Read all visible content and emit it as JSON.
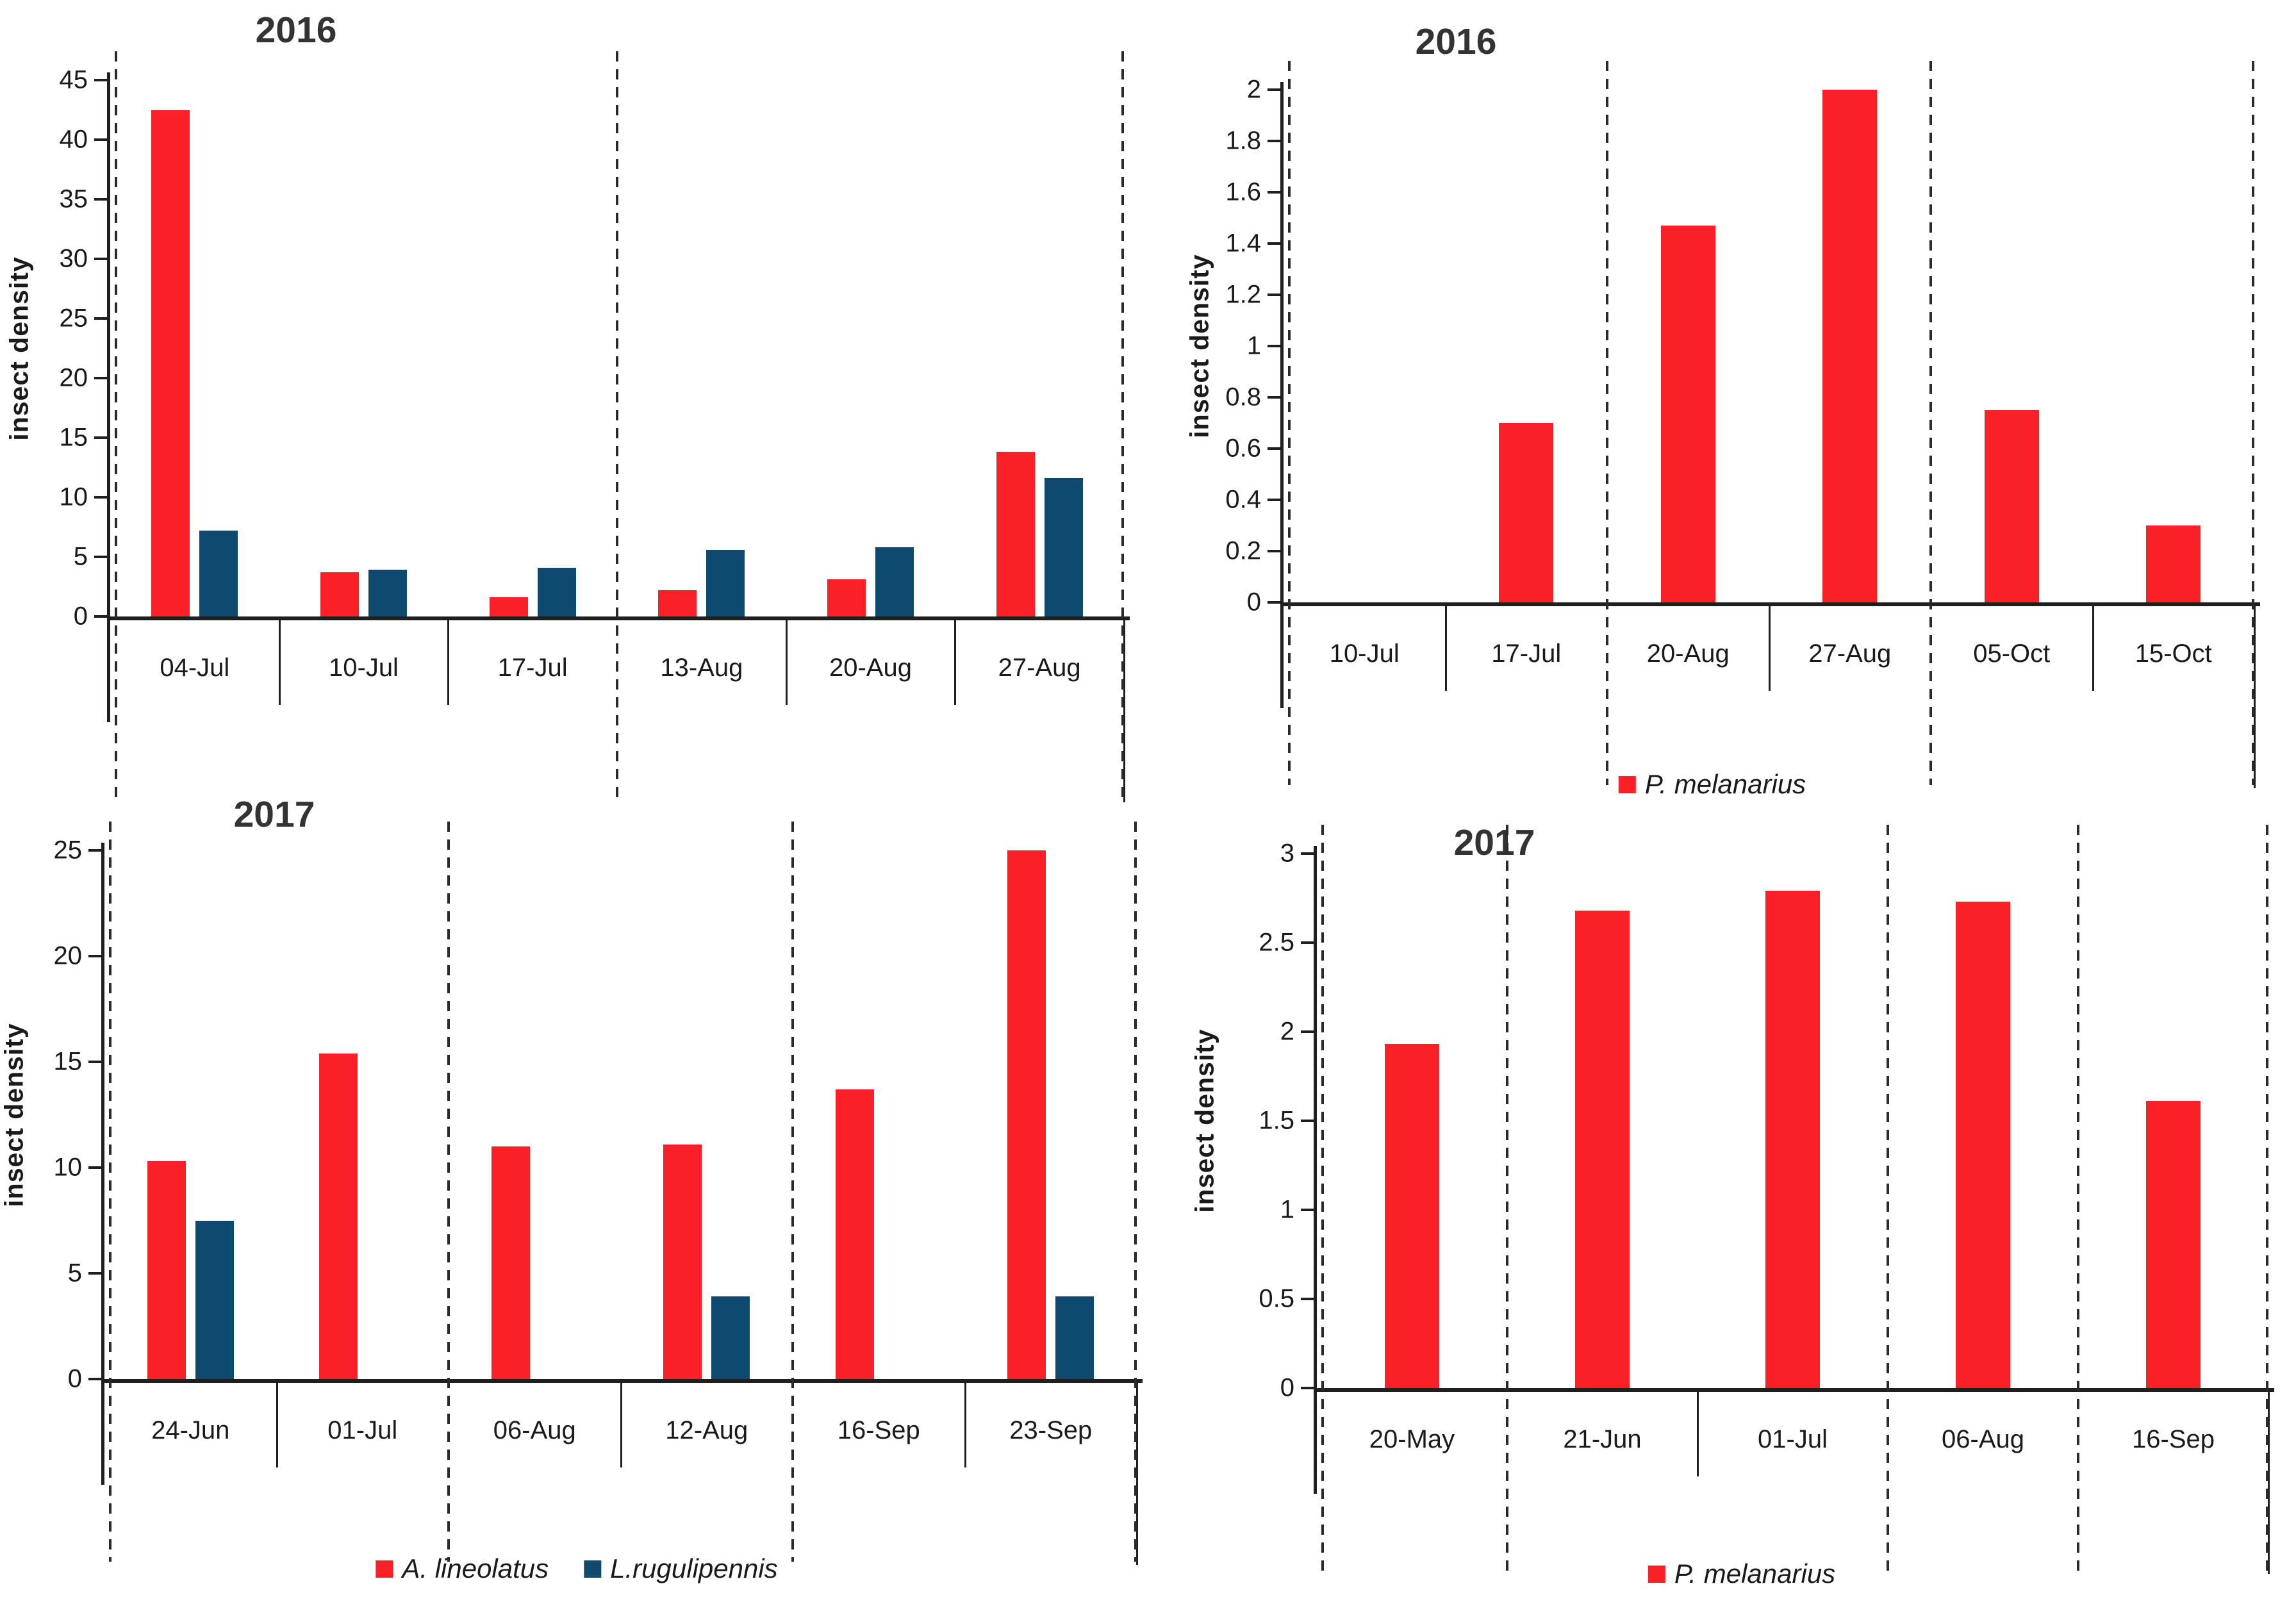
{
  "page": {
    "background": "#ffffff"
  },
  "colors": {
    "red": "#fa2028",
    "blue": "#0e4a70",
    "axis": "#1f1f1f",
    "dashed": "#2a2a2a",
    "title": "#333333"
  },
  "chart_data": [
    {
      "id": "lygus-2016",
      "type": "bar",
      "title": "2016",
      "ylabel": "insect density",
      "xlabel": "",
      "categories": [
        "04-Jul",
        "10-Jul",
        "17-Jul",
        "13-Aug",
        "20-Aug",
        "27-Aug"
      ],
      "series": [
        {
          "name": "A. lineolatus",
          "color_key": "red",
          "values": [
            42.5,
            3.7,
            1.6,
            2.2,
            3.1,
            13.8
          ]
        },
        {
          "name": "L.rugulipennis",
          "color_key": "blue",
          "values": [
            7.2,
            3.9,
            4.1,
            5.6,
            5.8,
            11.6
          ]
        }
      ],
      "ylim": [
        0,
        45
      ],
      "yticks": [
        0,
        5,
        10,
        15,
        20,
        25,
        30,
        35,
        40,
        45
      ],
      "grid": false,
      "legend": [],
      "legend_position": "none",
      "dashed_boundaries": [
        0,
        3,
        6
      ],
      "solid_boundaries": [
        1,
        2,
        4,
        5
      ]
    },
    {
      "id": "melanarius-2016",
      "type": "bar",
      "title": "2016",
      "ylabel": "insect density",
      "xlabel": "",
      "categories": [
        "10-Jul",
        "17-Jul",
        "20-Aug",
        "27-Aug",
        "05-Oct",
        "15-Oct"
      ],
      "series": [
        {
          "name": "P. melanarius",
          "color_key": "red",
          "values": [
            0,
            0.7,
            1.47,
            2.0,
            0.75,
            0.3
          ]
        }
      ],
      "ylim": [
        0,
        2
      ],
      "yticks": [
        0,
        0.2,
        0.4,
        0.6,
        0.8,
        1,
        1.2,
        1.4,
        1.6,
        1.8,
        2
      ],
      "grid": false,
      "legend": [
        {
          "label": "P. melanarius",
          "color_key": "red"
        }
      ],
      "legend_position": "bottom",
      "dashed_boundaries": [
        0,
        2,
        4,
        6
      ],
      "solid_boundaries": [
        1,
        3,
        5
      ]
    },
    {
      "id": "lygus-2017",
      "type": "bar",
      "title": "2017",
      "ylabel": "insect density",
      "xlabel": "",
      "categories": [
        "24-Jun",
        "01-Jul",
        "06-Aug",
        "12-Aug",
        "16-Sep",
        "23-Sep"
      ],
      "series": [
        {
          "name": "A. lineolatus",
          "color_key": "red",
          "values": [
            10.3,
            15.4,
            11.0,
            11.1,
            13.7,
            25.0
          ]
        },
        {
          "name": "L.rugulipennis",
          "color_key": "blue",
          "values": [
            7.5,
            0,
            0,
            3.9,
            0,
            3.9
          ]
        }
      ],
      "ylim": [
        0,
        25
      ],
      "yticks": [
        0,
        5,
        10,
        15,
        20,
        25
      ],
      "grid": false,
      "legend": [
        {
          "label": "A. lineolatus",
          "color_key": "red"
        },
        {
          "label": "L.rugulipennis",
          "color_key": "blue"
        }
      ],
      "legend_position": "bottom",
      "dashed_boundaries": [
        0,
        2,
        4,
        6
      ],
      "solid_boundaries": [
        1,
        3,
        5
      ]
    },
    {
      "id": "melanarius-2017",
      "type": "bar",
      "title": "2017",
      "ylabel": "insect density",
      "xlabel": "",
      "categories": [
        "20-May",
        "21-Jun",
        "01-Jul",
        "06-Aug",
        "16-Sep"
      ],
      "series": [
        {
          "name": "P. melanarius",
          "color_key": "red",
          "values": [
            1.93,
            2.68,
            2.79,
            2.73,
            1.61
          ]
        }
      ],
      "ylim": [
        0,
        3
      ],
      "yticks": [
        0,
        0.5,
        1,
        1.5,
        2,
        2.5,
        3
      ],
      "grid": false,
      "legend": [
        {
          "label": "P. melanarius",
          "color_key": "red"
        }
      ],
      "legend_position": "bottom",
      "dashed_boundaries": [
        0,
        1,
        3,
        4,
        5
      ],
      "solid_boundaries": [
        2
      ]
    }
  ]
}
